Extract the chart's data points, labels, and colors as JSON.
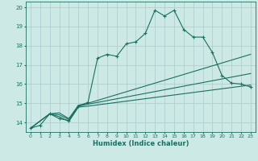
{
  "xlabel": "Humidex (Indice chaleur)",
  "background_color": "#cce9e5",
  "grid_color": "#aacccc",
  "line_color": "#1a7060",
  "xlim": [
    -0.5,
    23.5
  ],
  "ylim": [
    13.5,
    20.3
  ],
  "xticks": [
    0,
    1,
    2,
    3,
    4,
    5,
    6,
    7,
    8,
    9,
    10,
    11,
    12,
    13,
    14,
    15,
    16,
    17,
    18,
    19,
    20,
    21,
    22,
    23
  ],
  "yticks": [
    14,
    15,
    16,
    17,
    18,
    19,
    20
  ],
  "line1_x": [
    0,
    1,
    2,
    3,
    4,
    5,
    6,
    7,
    8,
    9,
    10,
    11,
    12,
    13,
    14,
    15,
    16,
    17,
    18,
    19,
    20,
    21,
    22,
    23
  ],
  "line1_y": [
    13.7,
    13.85,
    14.45,
    14.2,
    14.1,
    14.85,
    15.05,
    17.35,
    17.55,
    17.45,
    18.1,
    18.2,
    18.65,
    19.85,
    19.55,
    19.85,
    18.85,
    18.45,
    18.45,
    17.65,
    16.45,
    16.05,
    16.0,
    15.85
  ],
  "line2_x": [
    0,
    2,
    3,
    4,
    5,
    6,
    23
  ],
  "line2_y": [
    13.7,
    14.45,
    14.5,
    14.2,
    14.9,
    15.0,
    17.55
  ],
  "line3_x": [
    0,
    2,
    3,
    4,
    5,
    6,
    23
  ],
  "line3_y": [
    13.7,
    14.45,
    14.4,
    14.15,
    14.85,
    14.95,
    16.55
  ],
  "line4_x": [
    0,
    2,
    3,
    4,
    5,
    6,
    23
  ],
  "line4_y": [
    13.7,
    14.45,
    14.3,
    14.05,
    14.8,
    14.85,
    15.95
  ]
}
